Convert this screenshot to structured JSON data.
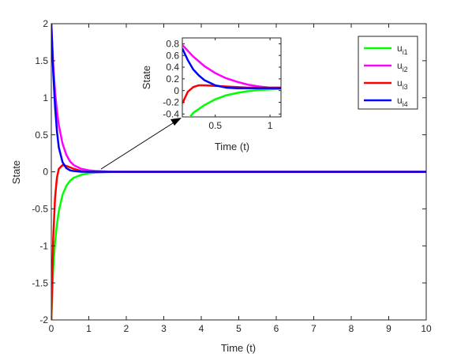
{
  "chart_data": [
    {
      "type": "line",
      "xlabel": "Time (t)",
      "ylabel": "State",
      "xlim": [
        0,
        10
      ],
      "ylim": [
        -2,
        2
      ],
      "xticks": [
        0,
        1,
        2,
        3,
        4,
        5,
        6,
        7,
        8,
        9,
        10
      ],
      "xtick_labels": [
        "0",
        "1",
        "2",
        "3",
        "4",
        "5",
        "6",
        "7",
        "8",
        "9",
        "10"
      ],
      "yticks": [
        -2,
        -1.5,
        -1,
        -0.5,
        0,
        0.5,
        1,
        1.5,
        2
      ],
      "ytick_labels": [
        "-2",
        "-1.5",
        "-1",
        "-0.5",
        "0",
        "0.5",
        "1",
        "1.5",
        "2"
      ],
      "grid": false,
      "legend_position": "top-right",
      "series": [
        {
          "name": "u_i1",
          "label_main": "u",
          "label_sub": "i1",
          "color": "#00ff00",
          "x": [
            0,
            0.05,
            0.1,
            0.15,
            0.2,
            0.3,
            0.4,
            0.5,
            0.6,
            0.8,
            1.0,
            1.2,
            1.5,
            2.0,
            10
          ],
          "y": [
            -2,
            -1.31,
            -0.95,
            -0.71,
            -0.53,
            -0.31,
            -0.19,
            -0.12,
            -0.08,
            -0.04,
            -0.02,
            -0.01,
            -0.004,
            0,
            0
          ]
        },
        {
          "name": "u_i2",
          "label_main": "u",
          "label_sub": "i2",
          "color": "#ff00ff",
          "x": [
            0,
            0.05,
            0.1,
            0.15,
            0.2,
            0.3,
            0.4,
            0.5,
            0.6,
            0.8,
            1.0,
            1.2,
            1.5,
            2.0,
            10
          ],
          "y": [
            2,
            1.45,
            1.08,
            0.82,
            0.63,
            0.38,
            0.23,
            0.14,
            0.09,
            0.04,
            0.02,
            0.01,
            0.004,
            0,
            0
          ]
        },
        {
          "name": "u_i3",
          "label_main": "u",
          "label_sub": "i3",
          "color": "#ff0000",
          "x": [
            0,
            0.05,
            0.1,
            0.15,
            0.2,
            0.3,
            0.4,
            0.5,
            0.6,
            0.8,
            1.0,
            10
          ],
          "y": [
            -2,
            -0.9,
            -0.35,
            -0.08,
            0.04,
            0.09,
            0.08,
            0.06,
            0.04,
            0.01,
            0,
            0
          ]
        },
        {
          "name": "u_i4",
          "label_main": "u",
          "label_sub": "i4",
          "color": "#0000ff",
          "x": [
            0,
            0.05,
            0.1,
            0.15,
            0.2,
            0.3,
            0.4,
            0.5,
            0.6,
            0.8,
            1.0,
            10
          ],
          "y": [
            2,
            1.35,
            0.88,
            0.55,
            0.33,
            0.13,
            0.05,
            0.02,
            0.01,
            0,
            0,
            0
          ]
        }
      ]
    },
    {
      "type": "line",
      "xlabel": "Time (t)",
      "ylabel": "State",
      "xlim": [
        0.2,
        1.1
      ],
      "ylim": [
        -0.45,
        0.9
      ],
      "xticks": [
        0.5,
        1
      ],
      "xtick_labels": [
        "0.5",
        "1"
      ],
      "yticks": [
        -0.4,
        -0.2,
        0,
        0.2,
        0.4,
        0.6,
        0.8
      ],
      "ytick_labels": [
        "-0.4",
        "-0.2",
        "0",
        "0.2",
        "0.4",
        "0.6",
        "0.8"
      ],
      "grid": false,
      "series": [
        {
          "name": "u_i1",
          "color": "#00ff00",
          "x": [
            0.2,
            0.25,
            0.3,
            0.4,
            0.5,
            0.6,
            0.7,
            0.8,
            0.9,
            1.0,
            1.1
          ],
          "y": [
            -0.53,
            -0.5,
            -0.38,
            -0.25,
            -0.15,
            -0.08,
            -0.04,
            -0.01,
            0.01,
            0.02,
            0.03
          ]
        },
        {
          "name": "u_i2",
          "color": "#ff00ff",
          "x": [
            0.2,
            0.25,
            0.3,
            0.35,
            0.4,
            0.5,
            0.6,
            0.7,
            0.8,
            0.9,
            1.0,
            1.1
          ],
          "y": [
            0.78,
            0.68,
            0.58,
            0.5,
            0.42,
            0.3,
            0.21,
            0.15,
            0.1,
            0.07,
            0.05,
            0.05
          ]
        },
        {
          "name": "u_i3",
          "color": "#ff0000",
          "x": [
            0.2,
            0.25,
            0.3,
            0.35,
            0.4,
            0.5,
            0.6,
            0.7,
            0.8,
            0.9,
            1.0,
            1.1
          ],
          "y": [
            -0.22,
            -0.02,
            0.06,
            0.09,
            0.09,
            0.08,
            0.07,
            0.06,
            0.05,
            0.05,
            0.05,
            0.05
          ]
        },
        {
          "name": "u_i4",
          "color": "#0000ff",
          "x": [
            0.2,
            0.25,
            0.3,
            0.35,
            0.4,
            0.5,
            0.6,
            0.7,
            0.8,
            0.9,
            1.0,
            1.1
          ],
          "y": [
            0.72,
            0.52,
            0.36,
            0.26,
            0.18,
            0.09,
            0.05,
            0.04,
            0.04,
            0.04,
            0.04,
            0.04
          ]
        }
      ]
    }
  ]
}
